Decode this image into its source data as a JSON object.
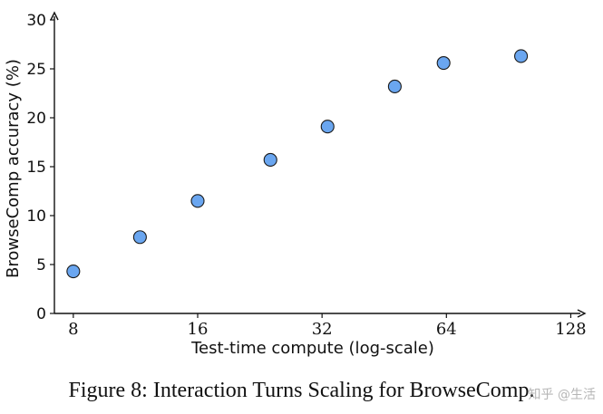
{
  "chart_data": {
    "type": "scatter",
    "x": [
      8,
      11.6,
      16,
      24,
      33,
      48,
      63,
      97
    ],
    "y": [
      4.3,
      7.8,
      11.5,
      15.7,
      19.1,
      23.2,
      25.6,
      26.3
    ],
    "xscale": "log2",
    "xticks": [
      8,
      16,
      32,
      64,
      128
    ],
    "xtick_labels": [
      "8",
      "16",
      "32",
      "64",
      "128"
    ],
    "yticks": [
      0,
      5,
      10,
      15,
      20,
      25,
      30
    ],
    "ytick_labels": [
      "0",
      "5",
      "10",
      "15",
      "20",
      "25",
      "30"
    ],
    "xlim": [
      7.2,
      135
    ],
    "ylim": [
      0,
      30
    ],
    "xlabel": "Test-time compute (log-scale)",
    "ylabel": "BrowseComp accuracy (%)",
    "marker_color": "#6aa6f0",
    "marker_edge_color": "#1a1a1a",
    "grid": false
  },
  "caption": "Figure 8: Interaction Turns Scaling for BrowseComp.",
  "watermark": "知乎 @生活"
}
